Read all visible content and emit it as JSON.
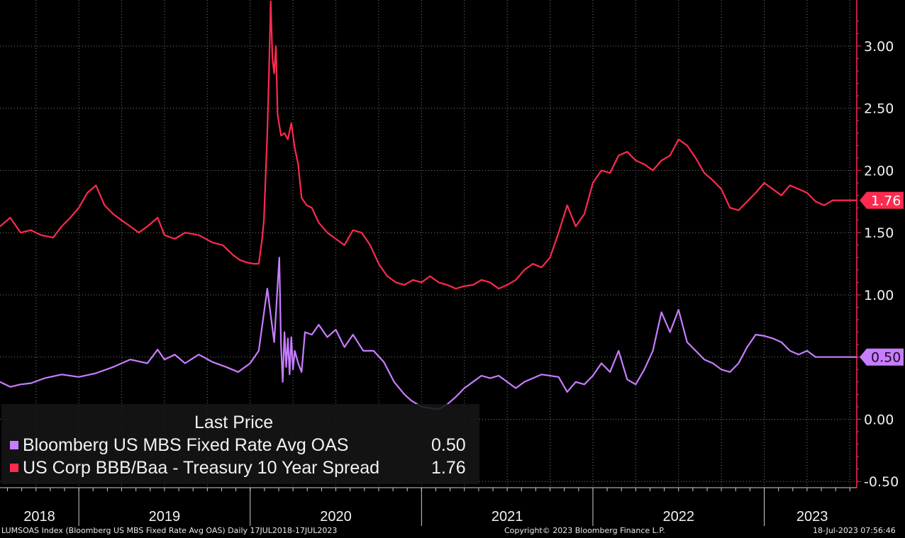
{
  "chart_data": {
    "type": "line",
    "x_range": [
      2018.54,
      2023.54
    ],
    "ylim": [
      -0.55,
      3.37
    ],
    "y_ticks": [
      -0.5,
      0.0,
      0.5,
      1.0,
      1.5,
      2.0,
      2.5,
      3.0
    ],
    "y_tick_labels": [
      "-0.50",
      "0.00",
      "0.50",
      "1.00",
      "1.50",
      "2.00",
      "2.50",
      "3.00"
    ],
    "x_year_labels": [
      "2018",
      "2019",
      "2020",
      "2021",
      "2022",
      "2023"
    ],
    "x_year_positions": [
      2018.77,
      2019.5,
      2020.5,
      2021.5,
      2022.5,
      2023.28
    ],
    "x_year_boundaries": [
      2019,
      2020,
      2021,
      2022,
      2023
    ],
    "grid": true,
    "legend": {
      "title": "Last Price",
      "placement": "bottom-left"
    },
    "series": [
      {
        "name": "Bloomberg US MBS Fixed Rate Avg OAS",
        "color": "#c77dff",
        "last_value": 0.5,
        "last_label": "0.50",
        "x": [
          2018.54,
          2018.6,
          2018.66,
          2018.72,
          2018.8,
          2018.9,
          2019.0,
          2019.1,
          2019.2,
          2019.3,
          2019.4,
          2019.46,
          2019.5,
          2019.56,
          2019.62,
          2019.7,
          2019.78,
          2019.86,
          2019.93,
          2020.0,
          2020.05,
          2020.1,
          2020.14,
          2020.17,
          2020.18,
          2020.19,
          2020.2,
          2020.21,
          2020.22,
          2020.23,
          2020.24,
          2020.25,
          2020.26,
          2020.28,
          2020.3,
          2020.32,
          2020.36,
          2020.4,
          2020.45,
          2020.5,
          2020.55,
          2020.6,
          2020.66,
          2020.72,
          2020.78,
          2020.84,
          2020.9,
          2020.94,
          2021.0,
          2021.05,
          2021.1,
          2021.15,
          2021.2,
          2021.25,
          2021.3,
          2021.35,
          2021.4,
          2021.45,
          2021.5,
          2021.55,
          2021.6,
          2021.7,
          2021.8,
          2021.85,
          2021.9,
          2021.95,
          2022.0,
          2022.05,
          2022.1,
          2022.15,
          2022.2,
          2022.25,
          2022.3,
          2022.35,
          2022.4,
          2022.45,
          2022.5,
          2022.55,
          2022.6,
          2022.65,
          2022.7,
          2022.75,
          2022.8,
          2022.85,
          2022.9,
          2022.95,
          2023.0,
          2023.05,
          2023.1,
          2023.15,
          2023.2,
          2023.25,
          2023.3,
          2023.35,
          2023.4,
          2023.45,
          2023.5,
          2023.54
        ],
        "values": [
          0.3,
          0.26,
          0.28,
          0.29,
          0.33,
          0.36,
          0.34,
          0.37,
          0.42,
          0.48,
          0.45,
          0.56,
          0.48,
          0.52,
          0.45,
          0.52,
          0.46,
          0.42,
          0.38,
          0.45,
          0.55,
          1.05,
          0.62,
          1.3,
          0.6,
          0.3,
          0.7,
          0.42,
          0.65,
          0.36,
          0.66,
          0.4,
          0.55,
          0.45,
          0.38,
          0.7,
          0.68,
          0.76,
          0.66,
          0.72,
          0.58,
          0.68,
          0.55,
          0.55,
          0.46,
          0.3,
          0.2,
          0.15,
          0.1,
          0.09,
          0.08,
          0.12,
          0.18,
          0.25,
          0.3,
          0.35,
          0.33,
          0.35,
          0.3,
          0.25,
          0.3,
          0.36,
          0.34,
          0.22,
          0.3,
          0.28,
          0.35,
          0.45,
          0.38,
          0.55,
          0.32,
          0.28,
          0.4,
          0.55,
          0.86,
          0.7,
          0.88,
          0.62,
          0.55,
          0.48,
          0.45,
          0.4,
          0.38,
          0.45,
          0.58,
          0.68,
          0.67,
          0.65,
          0.62,
          0.55,
          0.52,
          0.55,
          0.5,
          0.5,
          0.5,
          0.5,
          0.5,
          0.5
        ]
      },
      {
        "name": "US Corp BBB/Baa - Treasury 10 Year Spread",
        "color": "#ff2a4f",
        "last_value": 1.76,
        "last_label": "1.76",
        "x": [
          2018.54,
          2018.6,
          2018.66,
          2018.72,
          2018.78,
          2018.85,
          2018.9,
          2018.95,
          2019.0,
          2019.05,
          2019.1,
          2019.15,
          2019.2,
          2019.25,
          2019.3,
          2019.35,
          2019.4,
          2019.46,
          2019.5,
          2019.56,
          2019.62,
          2019.7,
          2019.78,
          2019.84,
          2019.9,
          2019.94,
          2019.98,
          2020.02,
          2020.05,
          2020.07,
          2020.08,
          2020.09,
          2020.1,
          2020.11,
          2020.12,
          2020.13,
          2020.14,
          2020.15,
          2020.16,
          2020.18,
          2020.2,
          2020.22,
          2020.24,
          2020.26,
          2020.28,
          2020.3,
          2020.33,
          2020.36,
          2020.4,
          2020.45,
          2020.5,
          2020.55,
          2020.6,
          2020.65,
          2020.7,
          2020.75,
          2020.8,
          2020.85,
          2020.9,
          2020.95,
          2021.0,
          2021.05,
          2021.1,
          2021.15,
          2021.2,
          2021.25,
          2021.3,
          2021.35,
          2021.4,
          2021.45,
          2021.5,
          2021.55,
          2021.6,
          2021.65,
          2021.7,
          2021.75,
          2021.8,
          2021.85,
          2021.9,
          2021.95,
          2022.0,
          2022.05,
          2022.1,
          2022.15,
          2022.2,
          2022.25,
          2022.3,
          2022.35,
          2022.4,
          2022.45,
          2022.5,
          2022.55,
          2022.6,
          2022.65,
          2022.7,
          2022.75,
          2022.8,
          2022.85,
          2022.9,
          2022.95,
          2023.0,
          2023.05,
          2023.1,
          2023.15,
          2023.2,
          2023.25,
          2023.3,
          2023.35,
          2023.4,
          2023.45,
          2023.5,
          2023.54
        ],
        "values": [
          1.55,
          1.62,
          1.5,
          1.52,
          1.48,
          1.46,
          1.55,
          1.62,
          1.7,
          1.82,
          1.88,
          1.72,
          1.65,
          1.6,
          1.55,
          1.5,
          1.55,
          1.62,
          1.48,
          1.45,
          1.5,
          1.48,
          1.42,
          1.4,
          1.32,
          1.28,
          1.26,
          1.25,
          1.25,
          1.45,
          1.6,
          1.95,
          2.3,
          2.8,
          3.36,
          2.9,
          2.78,
          3.0,
          2.45,
          2.28,
          2.3,
          2.25,
          2.38,
          2.18,
          2.05,
          1.78,
          1.72,
          1.7,
          1.58,
          1.5,
          1.45,
          1.4,
          1.52,
          1.5,
          1.4,
          1.25,
          1.15,
          1.1,
          1.08,
          1.12,
          1.1,
          1.15,
          1.1,
          1.08,
          1.05,
          1.07,
          1.08,
          1.12,
          1.1,
          1.05,
          1.08,
          1.12,
          1.2,
          1.25,
          1.22,
          1.3,
          1.5,
          1.72,
          1.55,
          1.65,
          1.9,
          2.0,
          1.98,
          2.12,
          2.15,
          2.08,
          2.05,
          2.0,
          2.08,
          2.12,
          2.25,
          2.2,
          2.1,
          1.98,
          1.92,
          1.85,
          1.7,
          1.68,
          1.75,
          1.82,
          1.9,
          1.85,
          1.8,
          1.88,
          1.85,
          1.82,
          1.75,
          1.72,
          1.76,
          1.76,
          1.76,
          1.76
        ]
      }
    ]
  },
  "footer": {
    "left": "LUMSOAS Index (Bloomberg US MBS Fixed Rate Avg OAS)  Daily 17JUL2018-17JUL2023",
    "center": "Copyright© 2023 Bloomberg Finance L.P.",
    "right": "18-Jul-2023 07:56:46"
  },
  "colors": {
    "background": "#000000",
    "axis": "#ff2a4f",
    "grid": "#7a7a7a",
    "text": "#f2f2f2"
  }
}
